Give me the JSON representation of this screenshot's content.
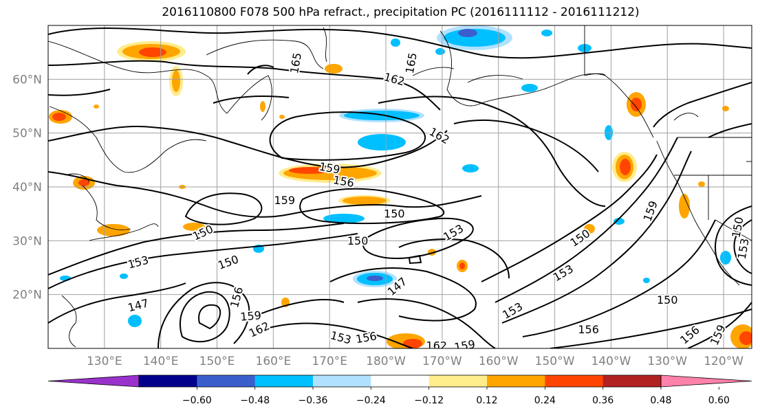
{
  "title": "2016110800 F078 500 hPa refract., precipitation PC (2016111112 - 2016111212)",
  "map": {
    "lon_labels": [
      "130°E",
      "140°E",
      "150°E",
      "160°E",
      "170°E",
      "180°W",
      "170°W",
      "160°W",
      "150°W",
      "140°W",
      "130°W",
      "120°W"
    ],
    "lat_labels": [
      "60°N",
      "50°N",
      "40°N",
      "30°N",
      "20°N"
    ],
    "axis_label_color": "#808080",
    "grid_color": "#a0a0a0",
    "contour_labels": [
      {
        "text": "165",
        "lon": 164.0,
        "lat": 63.0,
        "rot": -80
      },
      {
        "text": "165",
        "lon": -175.5,
        "lat": 63.0,
        "rot": -80
      },
      {
        "text": "162",
        "lon": -178.5,
        "lat": 60.0,
        "rot": 15
      },
      {
        "text": "162",
        "lon": -170.5,
        "lat": 49.5,
        "rot": 30
      },
      {
        "text": "159",
        "lon": 170.0,
        "lat": 43.5,
        "rot": 10
      },
      {
        "text": "156",
        "lon": 172.5,
        "lat": 41.0,
        "rot": 10
      },
      {
        "text": "159",
        "lon": 162.0,
        "lat": 37.5,
        "rot": 0
      },
      {
        "text": "150",
        "lon": -178.5,
        "lat": 35.0,
        "rot": 0
      },
      {
        "text": "153",
        "lon": -168.0,
        "lat": 31.5,
        "rot": -30
      },
      {
        "text": "150",
        "lon": 175.0,
        "lat": 30.0,
        "rot": 0
      },
      {
        "text": "150",
        "lon": 147.5,
        "lat": 31.5,
        "rot": -25
      },
      {
        "text": "153",
        "lon": 136.0,
        "lat": 26.0,
        "rot": -15
      },
      {
        "text": "150",
        "lon": 152.0,
        "lat": 26.0,
        "rot": -20
      },
      {
        "text": "147",
        "lon": 136.0,
        "lat": 18.0,
        "rot": -15
      },
      {
        "text": "156",
        "lon": 153.5,
        "lat": 19.5,
        "rot": -75
      },
      {
        "text": "159",
        "lon": 156.0,
        "lat": 16.0,
        "rot": -5
      },
      {
        "text": "162",
        "lon": 157.5,
        "lat": 13.5,
        "rot": -25
      },
      {
        "text": "153",
        "lon": 172.0,
        "lat": 12.0,
        "rot": 15
      },
      {
        "text": "156",
        "lon": 176.5,
        "lat": 12.0,
        "rot": -10
      },
      {
        "text": "147",
        "lon": -178.0,
        "lat": 21.5,
        "rot": -40
      },
      {
        "text": "162",
        "lon": -171.0,
        "lat": 10.5,
        "rot": 0
      },
      {
        "text": "159",
        "lon": -166.0,
        "lat": 10.5,
        "rot": -10
      },
      {
        "text": "153",
        "lon": -157.5,
        "lat": 17.0,
        "rot": -30
      },
      {
        "text": "153",
        "lon": -148.5,
        "lat": 24.0,
        "rot": -30
      },
      {
        "text": "150",
        "lon": -145.5,
        "lat": 30.5,
        "rot": -35
      },
      {
        "text": "159",
        "lon": -133.0,
        "lat": 35.5,
        "rot": -70
      },
      {
        "text": "150",
        "lon": -130.0,
        "lat": 19.0,
        "rot": 0
      },
      {
        "text": "156",
        "lon": -144.0,
        "lat": 13.5,
        "rot": 0
      },
      {
        "text": "156",
        "lon": -126.0,
        "lat": 12.5,
        "rot": -40
      },
      {
        "text": "159",
        "lon": -121.0,
        "lat": 12.5,
        "rot": -65
      },
      {
        "text": "150",
        "lon": -117.5,
        "lat": 32.5,
        "rot": -80
      },
      {
        "text": "153",
        "lon": -116.5,
        "lat": 28.5,
        "rot": -80
      }
    ]
  },
  "colorbar": {
    "ticks": [
      "−0.60",
      "−0.48",
      "−0.36",
      "−0.24",
      "−0.12",
      "0.12",
      "0.24",
      "0.36",
      "0.48",
      "0.60"
    ],
    "colors": [
      "#9932CC",
      "#00008B",
      "#3A5FCD",
      "#00BFFF",
      "#B0E2FF",
      "#FFFFFF",
      "#FFEC8B",
      "#FFA500",
      "#FF4500",
      "#B22222",
      "#FF82AB"
    ]
  }
}
